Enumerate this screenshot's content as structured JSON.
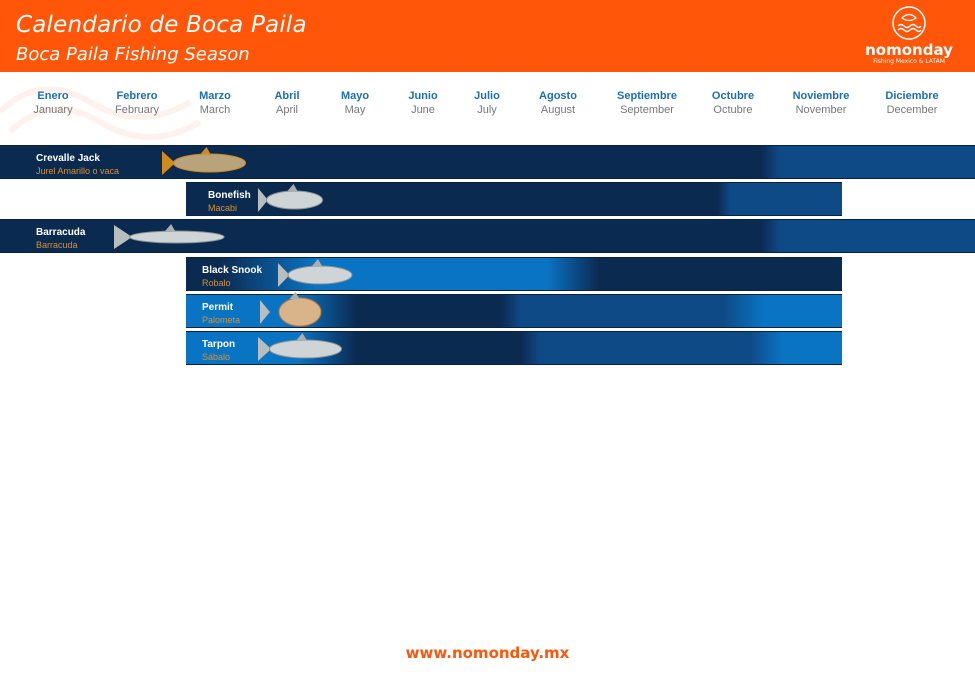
{
  "header": {
    "title": "Calendario de Boca Paila",
    "subtitle": "Boca Paila Fishing Season",
    "brand": "nomonday",
    "tagline": "Fishing Mexico & LATAM"
  },
  "colors": {
    "accent": "#ff560a",
    "dark_bar": "#0b2a50",
    "light_bar": "#0a74c4",
    "month_es": "#1a6fb5"
  },
  "months": [
    {
      "es": "Enero",
      "en": "January"
    },
    {
      "es": "Febrero",
      "en": "February"
    },
    {
      "es": "Marzo",
      "en": "March"
    },
    {
      "es": "Abril",
      "en": "April"
    },
    {
      "es": "Mayo",
      "en": "May"
    },
    {
      "es": "Junio",
      "en": "June"
    },
    {
      "es": "Julio",
      "en": "July"
    },
    {
      "es": "Agosto",
      "en": "August"
    },
    {
      "es": "Septiembre",
      "en": "September"
    },
    {
      "es": "Octubre",
      "en": "Octubre"
    },
    {
      "es": "Noviembre",
      "en": "November"
    },
    {
      "es": "Diciembre",
      "en": "December"
    }
  ],
  "species": [
    {
      "name": "Crevalle Jack",
      "local": "Jurel Amarillo o vaca",
      "icon": "jack-fish-icon"
    },
    {
      "name": "Bonefish",
      "local": "Macabi",
      "icon": "bonefish-icon"
    },
    {
      "name": "Barracuda",
      "local": "Barracuda",
      "icon": "barracuda-icon"
    },
    {
      "name": "Black Snook",
      "local": "Robalo",
      "icon": "snook-icon"
    },
    {
      "name": "Permit",
      "local": "Palometa",
      "icon": "permit-icon"
    },
    {
      "name": "Tarpon",
      "local": "Sábalo",
      "icon": "tarpon-icon"
    }
  ],
  "footer": {
    "url": "www.nomonday.mx"
  }
}
